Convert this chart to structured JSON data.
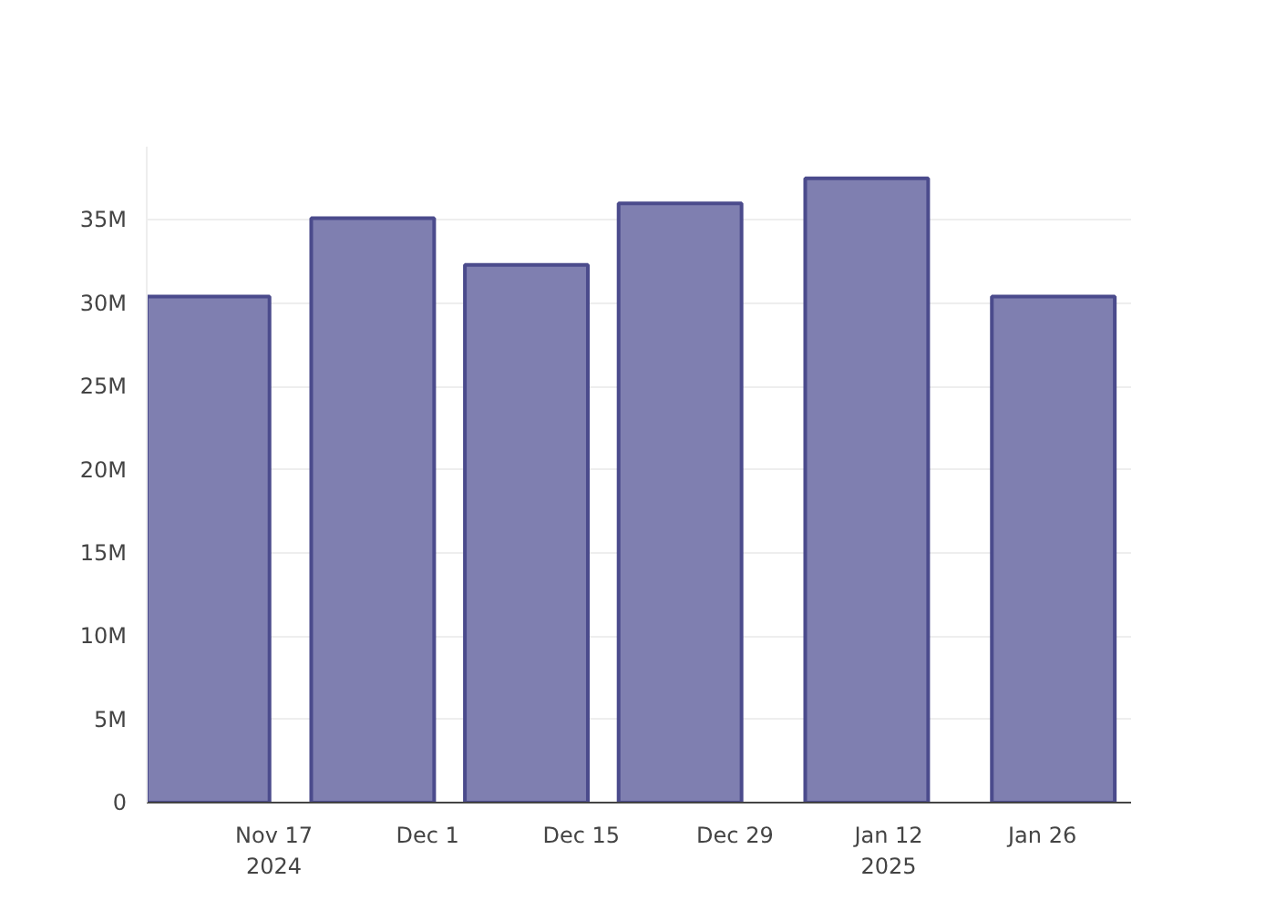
{
  "chart_data": {
    "type": "bar",
    "x": [
      "2024-11-11",
      "2024-11-26",
      "2024-12-10",
      "2024-12-24",
      "2025-01-10",
      "2025-01-27"
    ],
    "series": [
      {
        "color": "#7f7fb0",
        "values": [
          30400000,
          35100000,
          32300000,
          36000000,
          37500000,
          30400000
        ]
      }
    ],
    "xlim": [
      "2024-11-05T10:00",
      "2025-02-03T02:00"
    ],
    "xticks": [
      {
        "value": "2024-11-17",
        "label": "Nov 17\n2024"
      },
      {
        "value": "2024-12-01",
        "label": "Dec 1"
      },
      {
        "value": "2024-12-15",
        "label": "Dec 15"
      },
      {
        "value": "2024-12-29",
        "label": "Dec 29"
      },
      {
        "value": "2025-01-12",
        "label": "Jan 12\n2025"
      },
      {
        "value": "2025-01-26",
        "label": "Jan 26"
      }
    ],
    "ylim": [
      0,
      39400000
    ],
    "yticks": [
      {
        "value": 0,
        "label": "0"
      },
      {
        "value": 5000000,
        "label": "5M"
      },
      {
        "value": 10000000,
        "label": "10M"
      },
      {
        "value": 15000000,
        "label": "15M"
      },
      {
        "value": 20000000,
        "label": "20M"
      },
      {
        "value": 25000000,
        "label": "25M"
      },
      {
        "value": 30000000,
        "label": "30M"
      },
      {
        "value": 35000000,
        "label": "35M"
      }
    ],
    "grid": "y"
  }
}
